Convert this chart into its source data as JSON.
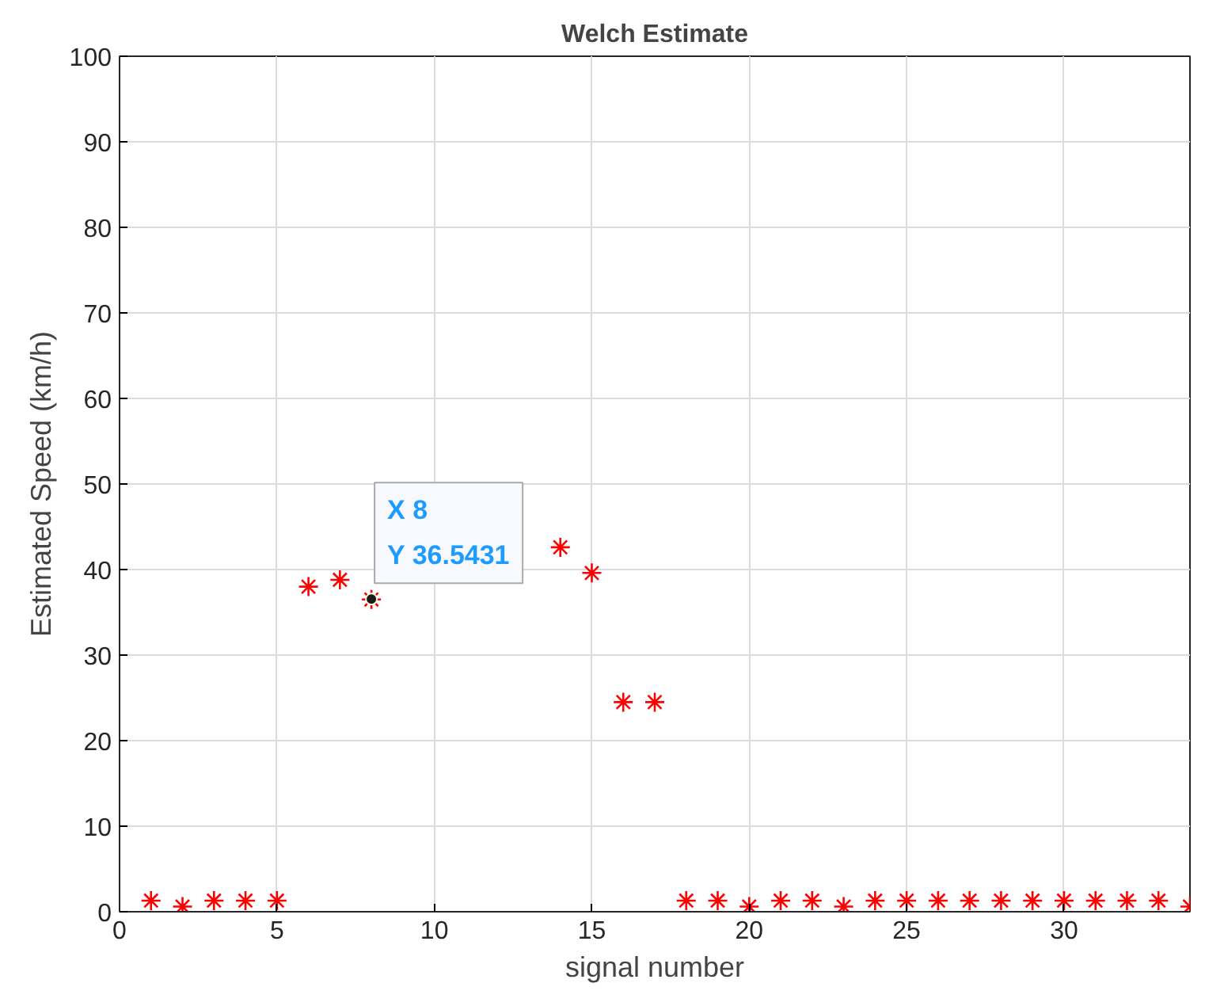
{
  "chart_data": {
    "type": "scatter",
    "title": "Welch Estimate",
    "xlabel": "signal number",
    "ylabel": "Estimated Speed (km/h)",
    "x": [
      1,
      2,
      3,
      4,
      5,
      6,
      7,
      8,
      9,
      10,
      11,
      12,
      13,
      14,
      15,
      16,
      17,
      18,
      19,
      20,
      21,
      22,
      23,
      24,
      25,
      26,
      27,
      28,
      29,
      30,
      31,
      32,
      33,
      34
    ],
    "series": [
      {
        "color": "#ff0000",
        "values": [
          1.3,
          0.6,
          1.3,
          1.3,
          1.3,
          38.0,
          38.8,
          36.5,
          null,
          null,
          null,
          null,
          null,
          42.6,
          39.6,
          24.5,
          24.5,
          1.3,
          1.3,
          0.6,
          1.3,
          1.3,
          0.6,
          1.3,
          1.3,
          1.3,
          1.3,
          1.3,
          1.3,
          1.3,
          1.3,
          1.3,
          1.3,
          0.6
        ]
      }
    ],
    "marker": "cross",
    "xlim": [
      0,
      34
    ],
    "ylim": [
      0,
      100
    ],
    "xticks": [
      0,
      5,
      10,
      15,
      20,
      25,
      30
    ],
    "yticks": [
      0,
      10,
      20,
      30,
      40,
      50,
      60,
      70,
      80,
      90,
      100
    ],
    "grid": true,
    "annotations": [
      {
        "text": "X 8\nY 36.5431",
        "x": 8,
        "y": 36.5431
      }
    ]
  }
}
